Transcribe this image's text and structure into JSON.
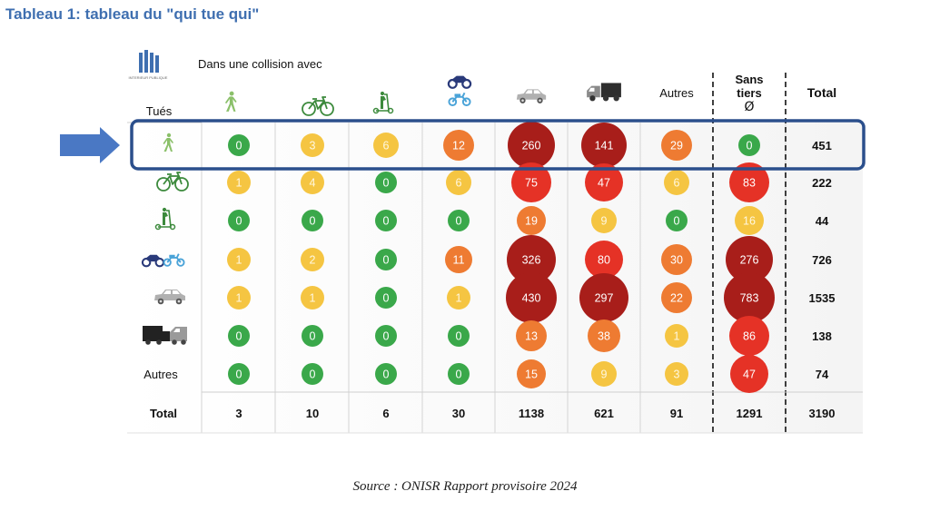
{
  "title": "Tableau 1: tableau du \"qui tue qui\"",
  "source": "Source : ONISR Rapport provisoire 2024",
  "logo_text": "INTERIEUR PUBLIQUE",
  "chart_data": {
    "type": "table",
    "header_left": "Tués",
    "header_collision": "Dans une collision avec",
    "columns": [
      {
        "key": "pedestrian",
        "label": "",
        "icon": "pedestrian-icon"
      },
      {
        "key": "bicycle",
        "label": "",
        "icon": "bicycle-icon"
      },
      {
        "key": "scooter",
        "label": "",
        "icon": "scooter-icon"
      },
      {
        "key": "motorcycle",
        "label": "",
        "icon": "motorcycle-moped-icon"
      },
      {
        "key": "car",
        "label": "",
        "icon": "car-icon"
      },
      {
        "key": "truck",
        "label": "",
        "icon": "truck-van-icon"
      },
      {
        "key": "autres",
        "label": "Autres",
        "icon": ""
      },
      {
        "key": "sans_tiers",
        "label": "Sans tiers",
        "symbol": "Ø",
        "icon": ""
      },
      {
        "key": "total",
        "label": "Total",
        "icon": ""
      }
    ],
    "rows": [
      {
        "label": "",
        "icon": "pedestrian-icon",
        "highlighted": true,
        "values": [
          0,
          3,
          6,
          12,
          260,
          141,
          29,
          0
        ],
        "total": 451
      },
      {
        "label": "",
        "icon": "bicycle-icon",
        "values": [
          1,
          4,
          0,
          6,
          75,
          47,
          6,
          83
        ],
        "total": 222
      },
      {
        "label": "",
        "icon": "scooter-icon",
        "values": [
          0,
          0,
          0,
          0,
          19,
          9,
          0,
          16
        ],
        "total": 44
      },
      {
        "label": "",
        "icon": "motorcycle-moped-icon",
        "values": [
          1,
          2,
          0,
          11,
          326,
          80,
          30,
          276
        ],
        "total": 726
      },
      {
        "label": "",
        "icon": "car-icon",
        "values": [
          1,
          1,
          0,
          1,
          430,
          297,
          22,
          783
        ],
        "total": 1535
      },
      {
        "label": "",
        "icon": "truck-van-icon",
        "values": [
          0,
          0,
          0,
          0,
          13,
          38,
          1,
          86
        ],
        "total": 138
      },
      {
        "label": "Autres",
        "icon": "",
        "values": [
          0,
          0,
          0,
          0,
          15,
          9,
          3,
          47
        ],
        "total": 74
      }
    ],
    "total_row": {
      "label": "Total",
      "values": [
        3,
        10,
        6,
        30,
        1138,
        621,
        91,
        1291
      ],
      "total": 3190
    },
    "colors": {
      "green": "#3aa84a",
      "yellow": "#f5c542",
      "orange": "#ee7b32",
      "red": "#e53226",
      "darkred": "#a81e1a",
      "highlight_border": "#2b4f8c",
      "arrow": "#4a78c4",
      "icon_green": "#8bc06a",
      "icon_dark_green": "#3c8a3c",
      "icon_blue": "#4aa3d8",
      "icon_navy": "#2a3a7a",
      "icon_gray": "#b0b0b0",
      "icon_dark": "#333333"
    }
  }
}
